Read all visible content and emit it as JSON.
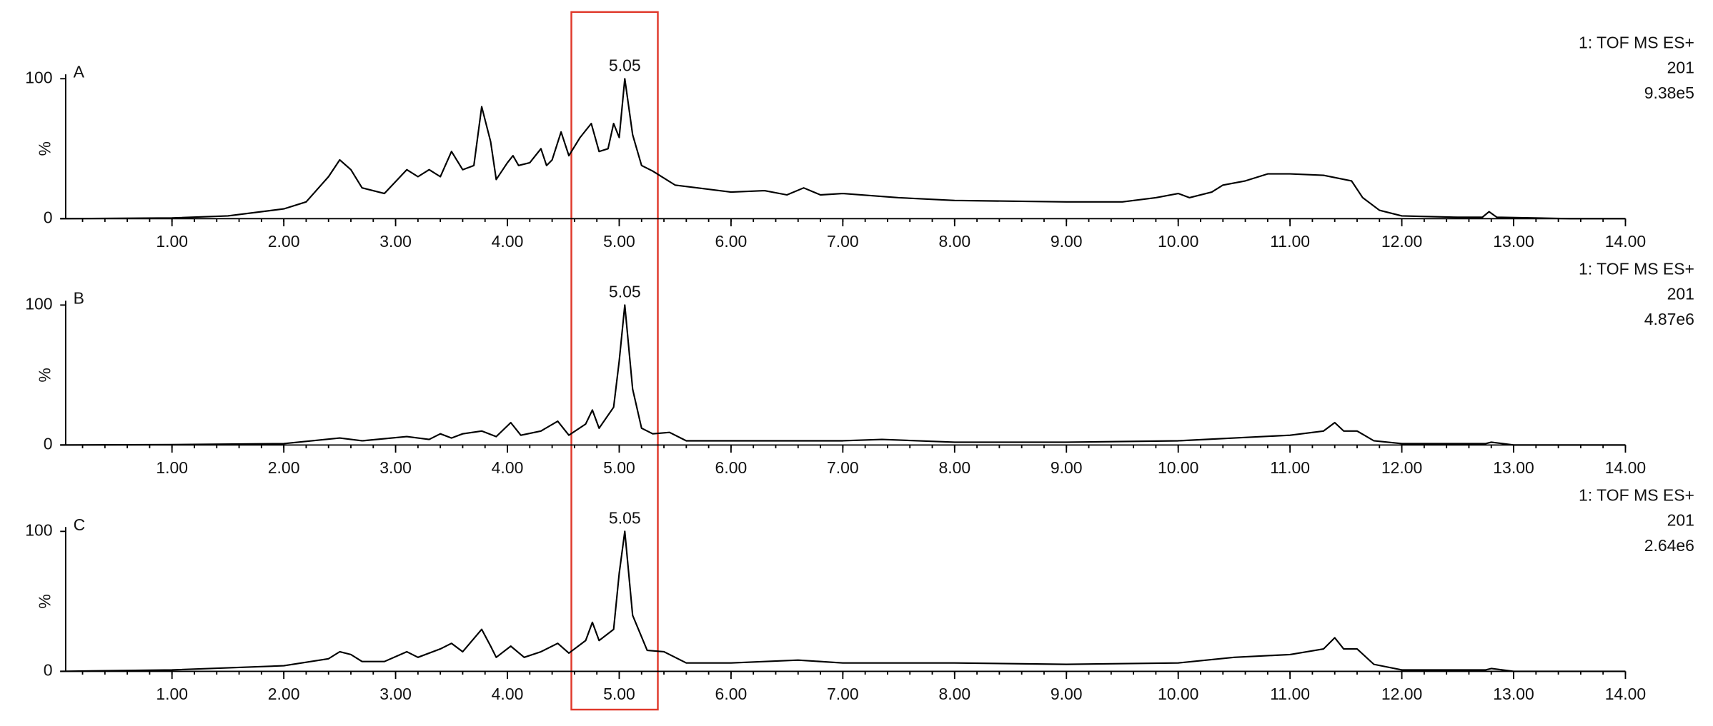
{
  "chart_data": [
    {
      "type": "line",
      "label": "A",
      "peak_label": "5.05",
      "y_label": "%",
      "info": [
        "1: TOF MS ES+",
        "201",
        "9.38e5"
      ],
      "xlim": [
        0,
        14
      ],
      "ylim": [
        0,
        100
      ],
      "yticks": [
        0,
        100
      ],
      "xticks": [
        {
          "value": 1,
          "label": "1.00"
        },
        {
          "value": 2,
          "label": "2.00"
        },
        {
          "value": 3,
          "label": "3.00"
        },
        {
          "value": 4,
          "label": "4.00"
        },
        {
          "value": 5,
          "label": "5.00"
        },
        {
          "value": 6,
          "label": "6.00"
        },
        {
          "value": 7,
          "label": "7.00"
        },
        {
          "value": 8,
          "label": "8.00"
        },
        {
          "value": 9,
          "label": "9.00"
        },
        {
          "value": 10,
          "label": "10.00"
        },
        {
          "value": 11,
          "label": "11.00"
        },
        {
          "value": 12,
          "label": "12.00"
        },
        {
          "value": 13,
          "label": "13.00"
        },
        {
          "value": 14,
          "label": "14.00"
        }
      ],
      "series": [
        {
          "color": "#000000",
          "x": [
            0,
            1.0,
            1.5,
            2.0,
            2.2,
            2.4,
            2.5,
            2.6,
            2.7,
            2.9,
            3.1,
            3.2,
            3.3,
            3.4,
            3.5,
            3.6,
            3.7,
            3.77,
            3.85,
            3.9,
            4.0,
            4.05,
            4.1,
            4.2,
            4.3,
            4.35,
            4.4,
            4.48,
            4.55,
            4.65,
            4.75,
            4.82,
            4.9,
            4.95,
            5.0,
            5.05,
            5.12,
            5.2,
            5.3,
            5.5,
            5.7,
            6.0,
            6.3,
            6.5,
            6.65,
            6.8,
            7.0,
            7.5,
            8.0,
            9.0,
            9.5,
            9.8,
            10.0,
            10.1,
            10.3,
            10.4,
            10.6,
            10.8,
            11.0,
            11.3,
            11.55,
            11.65,
            11.8,
            12.0,
            12.5,
            12.72,
            12.78,
            12.85,
            13.5,
            14
          ],
          "values": [
            0,
            0.5,
            2,
            7,
            12,
            30,
            42,
            35,
            22,
            18,
            35,
            30,
            35,
            30,
            48,
            35,
            38,
            80,
            55,
            28,
            40,
            45,
            38,
            40,
            50,
            38,
            42,
            62,
            45,
            58,
            68,
            48,
            50,
            68,
            58,
            100,
            60,
            38,
            34,
            24,
            22,
            19,
            20,
            17,
            22,
            17,
            18,
            15,
            13,
            12,
            12,
            15,
            18,
            15,
            19,
            24,
            27,
            32,
            32,
            31,
            27,
            15,
            6,
            2,
            1,
            1,
            5,
            1,
            0,
            0
          ]
        }
      ]
    },
    {
      "type": "line",
      "label": "B",
      "peak_label": "5.05",
      "y_label": "%",
      "info": [
        "1: TOF MS ES+",
        "201",
        "4.87e6"
      ],
      "xlim": [
        0,
        14
      ],
      "ylim": [
        0,
        100
      ],
      "yticks": [
        0,
        100
      ],
      "xticks": [
        {
          "value": 1,
          "label": "1.00"
        },
        {
          "value": 2,
          "label": "2.00"
        },
        {
          "value": 3,
          "label": "3.00"
        },
        {
          "value": 4,
          "label": "4.00"
        },
        {
          "value": 5,
          "label": "5.00"
        },
        {
          "value": 6,
          "label": "6.00"
        },
        {
          "value": 7,
          "label": "7.00"
        },
        {
          "value": 8,
          "label": "8.00"
        },
        {
          "value": 9,
          "label": "9.00"
        },
        {
          "value": 10,
          "label": "10.00"
        },
        {
          "value": 11,
          "label": "11.00"
        },
        {
          "value": 12,
          "label": "12.00"
        },
        {
          "value": 13,
          "label": "13.00"
        },
        {
          "value": 14,
          "label": "14.00"
        }
      ],
      "series": [
        {
          "color": "#000000",
          "x": [
            0,
            1,
            2,
            2.5,
            2.7,
            3.1,
            3.3,
            3.4,
            3.5,
            3.6,
            3.77,
            3.9,
            4.03,
            4.12,
            4.3,
            4.45,
            4.55,
            4.7,
            4.76,
            4.82,
            4.95,
            5.0,
            5.05,
            5.12,
            5.2,
            5.3,
            5.45,
            5.6,
            6,
            7,
            7.35,
            8,
            9,
            10,
            10.5,
            11,
            11.3,
            11.4,
            11.48,
            11.6,
            11.75,
            12,
            12.75,
            12.8,
            13,
            14
          ],
          "values": [
            0,
            0.3,
            1,
            5,
            3,
            6,
            4,
            8,
            5,
            8,
            10,
            6,
            16,
            7,
            10,
            17,
            7,
            15,
            25,
            12,
            27,
            60,
            100,
            40,
            12,
            8,
            9,
            3,
            3,
            3,
            4,
            2,
            2,
            3,
            5,
            7,
            10,
            16,
            10,
            10,
            3,
            1,
            1,
            2,
            0,
            0
          ]
        }
      ]
    },
    {
      "type": "line",
      "label": "C",
      "peak_label": "5.05",
      "y_label": "%",
      "info": [
        "1: TOF MS ES+",
        "201",
        "2.64e6"
      ],
      "xlim": [
        0,
        14
      ],
      "ylim": [
        0,
        100
      ],
      "yticks": [
        0,
        100
      ],
      "xticks": [
        {
          "value": 1,
          "label": "1.00"
        },
        {
          "value": 2,
          "label": "2.00"
        },
        {
          "value": 3,
          "label": "3.00"
        },
        {
          "value": 4,
          "label": "4.00"
        },
        {
          "value": 5,
          "label": "5.00"
        },
        {
          "value": 6,
          "label": "6.00"
        },
        {
          "value": 7,
          "label": "7.00"
        },
        {
          "value": 8,
          "label": "8.00"
        },
        {
          "value": 9,
          "label": "9.00"
        },
        {
          "value": 10,
          "label": "10.00"
        },
        {
          "value": 11,
          "label": "11.00"
        },
        {
          "value": 12,
          "label": "12.00"
        },
        {
          "value": 13,
          "label": "13.00"
        },
        {
          "value": 14,
          "label": "14.00"
        }
      ],
      "series": [
        {
          "color": "#000000",
          "x": [
            0,
            1,
            2,
            2.4,
            2.5,
            2.6,
            2.7,
            2.9,
            3.1,
            3.2,
            3.4,
            3.5,
            3.6,
            3.77,
            3.85,
            3.9,
            4.03,
            4.15,
            4.3,
            4.45,
            4.55,
            4.7,
            4.76,
            4.82,
            4.95,
            5.0,
            5.05,
            5.12,
            5.25,
            5.4,
            5.6,
            6,
            6.6,
            7,
            8,
            9,
            10,
            10.5,
            11,
            11.3,
            11.4,
            11.48,
            11.6,
            11.75,
            12,
            12.75,
            12.8,
            13,
            14
          ],
          "values": [
            0,
            1,
            4,
            9,
            14,
            12,
            7,
            7,
            14,
            10,
            16,
            20,
            14,
            30,
            18,
            10,
            18,
            10,
            14,
            20,
            13,
            22,
            35,
            22,
            30,
            70,
            100,
            40,
            15,
            14,
            6,
            6,
            8,
            6,
            6,
            5,
            6,
            10,
            12,
            16,
            24,
            16,
            16,
            5,
            1,
            1,
            2,
            0,
            0
          ]
        }
      ]
    }
  ]
}
